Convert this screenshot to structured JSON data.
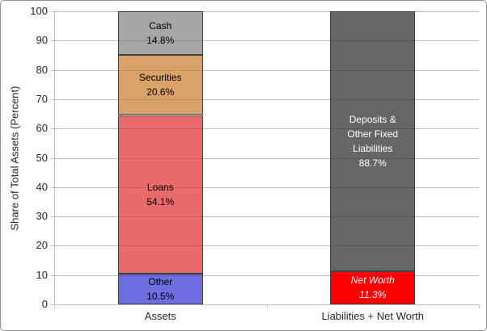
{
  "figure": {
    "background": "#ffffff",
    "border_color": "#8f8f8f",
    "axis_color": "#bfbfbf",
    "gridline_color": "#d9d9d9",
    "segment_border_color": "#404040"
  },
  "chart_data": {
    "type": "bar",
    "stacked": true,
    "title": "",
    "xlabel": "",
    "ylabel": "Share of Total Assets (Percent)",
    "ylim": [
      0,
      100
    ],
    "yticks": [
      0,
      10,
      20,
      30,
      40,
      50,
      60,
      70,
      80,
      90,
      100
    ],
    "grid": "horizontal",
    "legend": "none",
    "categories": [
      "Assets",
      "Liabilities + Net Worth"
    ],
    "bars": [
      {
        "category": "Assets",
        "segments": [
          {
            "name": "Other",
            "value": 10.5,
            "color": "#6e6ee0",
            "text_color": "#000000",
            "italic": false,
            "label_lines": [
              "Other",
              "10.5%"
            ]
          },
          {
            "name": "Loans",
            "value": 54.1,
            "color": "#e96a6a",
            "text_color": "#000000",
            "italic": false,
            "label_lines": [
              "Loans",
              "54.1%"
            ]
          },
          {
            "name": "Securities",
            "value": 20.6,
            "color": "#d9a268",
            "text_color": "#000000",
            "italic": false,
            "label_lines": [
              "Securities",
              "20.6%"
            ]
          },
          {
            "name": "Cash",
            "value": 14.8,
            "color": "#a6a6a6",
            "text_color": "#000000",
            "italic": false,
            "label_lines": [
              "Cash",
              "14.8%"
            ]
          }
        ]
      },
      {
        "category": "Liabilities + Net Worth",
        "segments": [
          {
            "name": "Net Worth",
            "value": 11.3,
            "color": "#ff0000",
            "text_color": "#ffffff",
            "italic": true,
            "label_lines": [
              "Net Worth",
              "11.3%"
            ]
          },
          {
            "name": "Deposits & Other Fixed Liabilities",
            "value": 88.7,
            "color": "#666666",
            "text_color": "#ffffff",
            "italic": false,
            "label_lines": [
              "Deposits &",
              "Other Fixed",
              "Liabilities",
              "88.7%"
            ]
          }
        ]
      }
    ]
  }
}
